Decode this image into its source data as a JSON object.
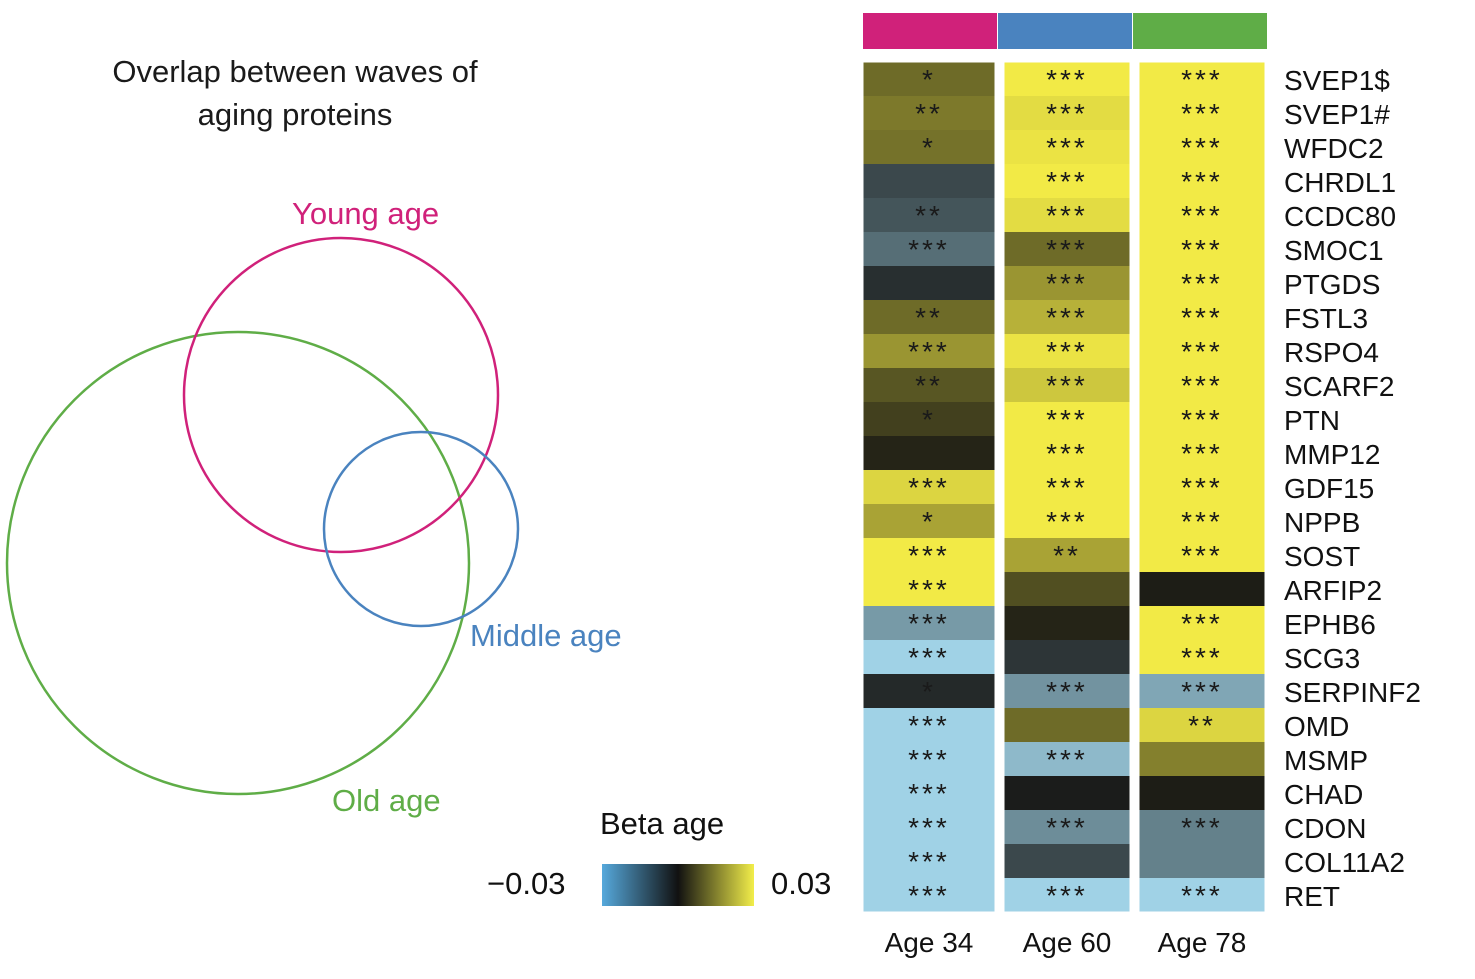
{
  "venn": {
    "title_line1": "Overlap between waves of",
    "title_line2": "aging proteins",
    "sets": [
      {
        "label": "Young age",
        "color": "#d0217a"
      },
      {
        "label": "Middle age",
        "color": "#4a83bf"
      },
      {
        "label": "Old age",
        "color": "#5fad47"
      }
    ]
  },
  "legend": {
    "title": "Beta age",
    "min_label": "−0.03",
    "max_label": "0.03",
    "min": -0.03,
    "max": 0.03
  },
  "chart_data": {
    "type": "heatmap",
    "value_name": "Beta age",
    "range": [
      -0.03,
      0.03
    ],
    "columns": [
      "Age 34",
      "Age 60",
      "Age 78"
    ],
    "column_colors": [
      "#d0217a",
      "#4a83bf",
      "#5fad47"
    ],
    "rows": [
      "SVEP1$",
      "SVEP1#",
      "WFDC2",
      "CHRDL1",
      "CCDC80",
      "SMOC1",
      "PTGDS",
      "FSTL3",
      "RSPO4",
      "SCARF2",
      "PTN",
      "MMP12",
      "GDF15",
      "NPPB",
      "SOST",
      "ARFIP2",
      "EPHB6",
      "SCG3",
      "SERPINF2",
      "OMD",
      "MSMP",
      "CHAD",
      "CDON",
      "COL11A2",
      "RET"
    ],
    "values": [
      [
        0.012,
        0.03,
        0.03
      ],
      [
        0.014,
        0.028,
        0.03
      ],
      [
        0.013,
        0.029,
        0.03
      ],
      [
        -0.008,
        0.03,
        0.03
      ],
      [
        -0.01,
        0.028,
        0.03
      ],
      [
        -0.014,
        0.012,
        0.03
      ],
      [
        -0.004,
        0.018,
        0.03
      ],
      [
        0.012,
        0.022,
        0.03
      ],
      [
        0.018,
        0.029,
        0.03
      ],
      [
        0.009,
        0.025,
        0.03
      ],
      [
        0.006,
        0.03,
        0.03
      ],
      [
        0.002,
        0.03,
        0.03
      ],
      [
        0.027,
        0.03,
        0.03
      ],
      [
        0.02,
        0.03,
        0.03
      ],
      [
        0.03,
        0.02,
        0.03
      ],
      [
        0.03,
        0.008,
        0.001
      ],
      [
        -0.021,
        0.002,
        0.03
      ],
      [
        -0.03,
        -0.005,
        0.03
      ],
      [
        -0.003,
        -0.02,
        -0.023
      ],
      [
        -0.03,
        0.012,
        0.027
      ],
      [
        -0.03,
        -0.026,
        0.015
      ],
      [
        -0.03,
        -0.001,
        0.001
      ],
      [
        -0.03,
        -0.019,
        -0.017
      ],
      [
        -0.03,
        -0.008,
        -0.017
      ],
      [
        -0.03,
        -0.03,
        -0.03
      ]
    ],
    "stars": [
      [
        "*",
        "***",
        "***"
      ],
      [
        "**",
        "***",
        "***"
      ],
      [
        "*",
        "***",
        "***"
      ],
      [
        "",
        "***",
        "***"
      ],
      [
        "**",
        "***",
        "***"
      ],
      [
        "***",
        "***",
        "***"
      ],
      [
        "",
        "***",
        "***"
      ],
      [
        "**",
        "***",
        "***"
      ],
      [
        "***",
        "***",
        "***"
      ],
      [
        "**",
        "***",
        "***"
      ],
      [
        "*",
        "***",
        "***"
      ],
      [
        "",
        "***",
        "***"
      ],
      [
        "***",
        "***",
        "***"
      ],
      [
        "*",
        "***",
        "***"
      ],
      [
        "***",
        "**",
        "***"
      ],
      [
        "***",
        "",
        ""
      ],
      [
        "***",
        "",
        "***"
      ],
      [
        "***",
        "",
        "***"
      ],
      [
        "*",
        "***",
        "***"
      ],
      [
        "***",
        "",
        "**"
      ],
      [
        "***",
        "***",
        ""
      ],
      [
        "***",
        "",
        ""
      ],
      [
        "***",
        "***",
        "***"
      ],
      [
        "***",
        "",
        ""
      ],
      [
        "***",
        "***",
        "***"
      ]
    ]
  }
}
